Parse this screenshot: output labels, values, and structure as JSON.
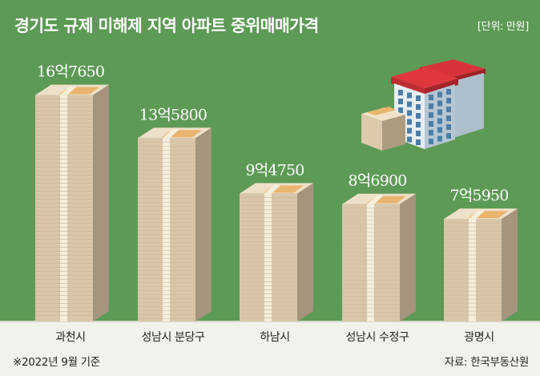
{
  "title": "경기도 규제 미해제 지역 아파트 중위매매가격",
  "unit_label": "[단위: 만원]",
  "footnote": "※2022년 9월 기준",
  "source": "자료: 한국부동산원",
  "colors": {
    "background": "#5d9a55",
    "stack_front": "#d9c6aa",
    "stack_side": "#a5957d",
    "stack_top": "#ede0c8",
    "band": "#f4eeda",
    "wrapper": "#e8b46e"
  },
  "chart_data": {
    "type": "bar",
    "title": "경기도 규제 미해제 지역 아파트 중위매매가격",
    "ylabel": "",
    "unit": "만원",
    "categories": [
      "과천시",
      "성남시 분당구",
      "하남시",
      "성남시 수정구",
      "광명시"
    ],
    "values": [
      167650,
      135800,
      94750,
      86900,
      75950
    ],
    "value_labels": [
      "16억7650",
      "13억5800",
      "9억4750",
      "8억6900",
      "7억5950"
    ],
    "ylim": [
      0,
      180000
    ],
    "grid": false,
    "legend": "none"
  }
}
